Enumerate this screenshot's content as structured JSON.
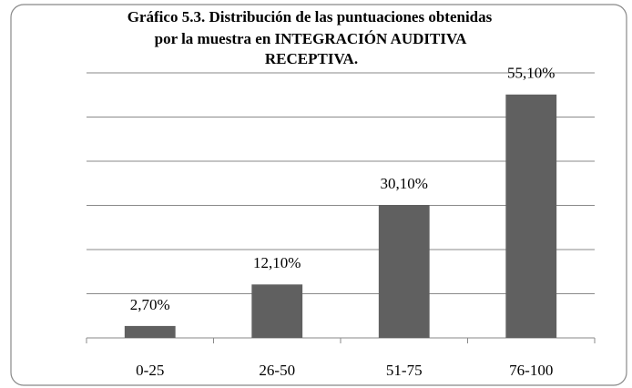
{
  "chart_data": {
    "type": "bar",
    "title": [
      "Gráfico 5.3. Distribución de las puntuaciones obtenidas",
      "por la muestra en INTEGRACIÓN AUDITIVA",
      "RECEPTIVA."
    ],
    "categories": [
      "0-25",
      "26-50",
      "51-75",
      "76-100"
    ],
    "values": [
      2.7,
      12.1,
      30.1,
      55.1
    ],
    "value_labels": [
      "2,70%",
      "12,10%",
      "30,10%",
      "55,10%"
    ],
    "color": "#606060",
    "ylim": [
      0,
      60
    ],
    "yticks": [
      0,
      10,
      20,
      30,
      40,
      50,
      60
    ],
    "grid": true
  }
}
